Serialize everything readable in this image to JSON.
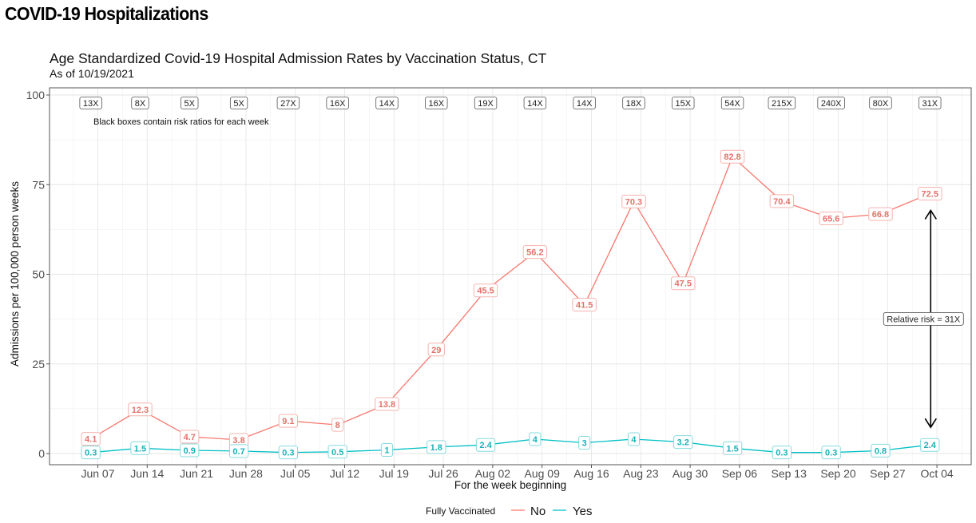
{
  "page": {
    "heading": "COVID-19 Hospitalizations"
  },
  "chart_data": {
    "type": "line",
    "title": "Age Standardized Covid-19 Hospital Admission Rates by Vaccination Status, CT",
    "subtitle": "As of 10/19/2021",
    "xlabel": "For the week beginning",
    "ylabel": "Admissions per 100,000 person weeks",
    "ylim": [
      0,
      100
    ],
    "yticks": [
      0,
      25,
      50,
      75,
      100
    ],
    "grid": true,
    "categories": [
      "Jun 07",
      "Jun 14",
      "Jun 21",
      "Jun 28",
      "Jul 05",
      "Jul 12",
      "Jul 19",
      "Jul 26",
      "Aug 02",
      "Aug 09",
      "Aug 16",
      "Aug 23",
      "Aug 30",
      "Sep 06",
      "Sep 13",
      "Sep 20",
      "Sep 27",
      "Oct 04"
    ],
    "series": [
      {
        "name": "No",
        "color": "#F8766D",
        "label_color": "#E3726A",
        "label_border": "#F6B3AE",
        "values": [
          4.1,
          12.3,
          4.7,
          3.8,
          9.1,
          8,
          13.8,
          29,
          45.5,
          56.2,
          41.5,
          70.3,
          47.5,
          82.8,
          70.4,
          65.6,
          66.8,
          72.5
        ]
      },
      {
        "name": "Yes",
        "color": "#00BFC4",
        "label_color": "#17B3B8",
        "label_border": "#86DADD",
        "values": [
          0.3,
          1.5,
          0.9,
          0.7,
          0.3,
          0.5,
          1,
          1.8,
          2.4,
          4,
          3,
          4,
          3.2,
          1.5,
          0.3,
          0.3,
          0.8,
          2.4
        ]
      }
    ],
    "risk_ratios": [
      "13X",
      "8X",
      "5X",
      "5X",
      "27X",
      "16X",
      "14X",
      "16X",
      "19X",
      "14X",
      "14X",
      "18X",
      "15X",
      "54X",
      "215X",
      "240X",
      "80X",
      "31X"
    ],
    "annotations": {
      "risk_box_note": "Black boxes contain risk ratios for each week",
      "relative_risk_label": "Relative risk = 31X",
      "relative_risk_week": "Oct 04"
    },
    "legend": {
      "title": "Fully Vaccinated",
      "position": "bottom",
      "entries": [
        "No",
        "Yes"
      ]
    }
  }
}
